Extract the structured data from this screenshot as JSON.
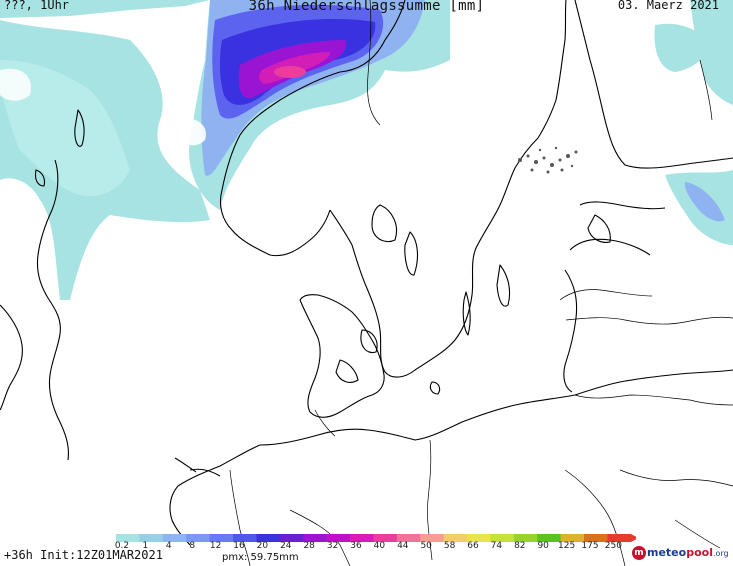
{
  "header": {
    "location_time": "???, 1Uhr",
    "title": "36h Niederschlagssumme [mm]",
    "date": "03. Maerz 2021"
  },
  "footer": {
    "init": "+36h Init:12Z01MAR2021",
    "pmx": "pmx: 59.75mm"
  },
  "branding": {
    "logo_icon": "meteopool-logo-icon",
    "part1": "meteo",
    "part2": "pool",
    "part3": ".org"
  },
  "legend": {
    "labels": [
      "0.2",
      "1",
      "4",
      "8",
      "12",
      "16",
      "20",
      "24",
      "28",
      "32",
      "36",
      "40",
      "44",
      "50",
      "58",
      "66",
      "74",
      "82",
      "90",
      "125",
      "175",
      "250"
    ],
    "colors": [
      "#a8e3e3",
      "#97cfe6",
      "#8db5ef",
      "#7b98f3",
      "#6a7af4",
      "#4f57ee",
      "#3a31e0",
      "#6a1fd6",
      "#9a14d4",
      "#c00fc8",
      "#dc1ab4",
      "#ec3d9f",
      "#f0749a",
      "#f59f92",
      "#f3cc6c",
      "#e8e44a",
      "#c6e237",
      "#96d42c",
      "#5ec123",
      "#ddb02d",
      "#d6731f",
      "#e83a2e"
    ],
    "max_value_shown_mm": 59.75
  },
  "map": {
    "region": "North Sea / Scandinavia / Baltic",
    "precip_colors": {
      "light": "#a8e3e3",
      "mid": "#8fb2f1",
      "heavy": "#3a31e0",
      "peak": "#d31db7"
    }
  }
}
